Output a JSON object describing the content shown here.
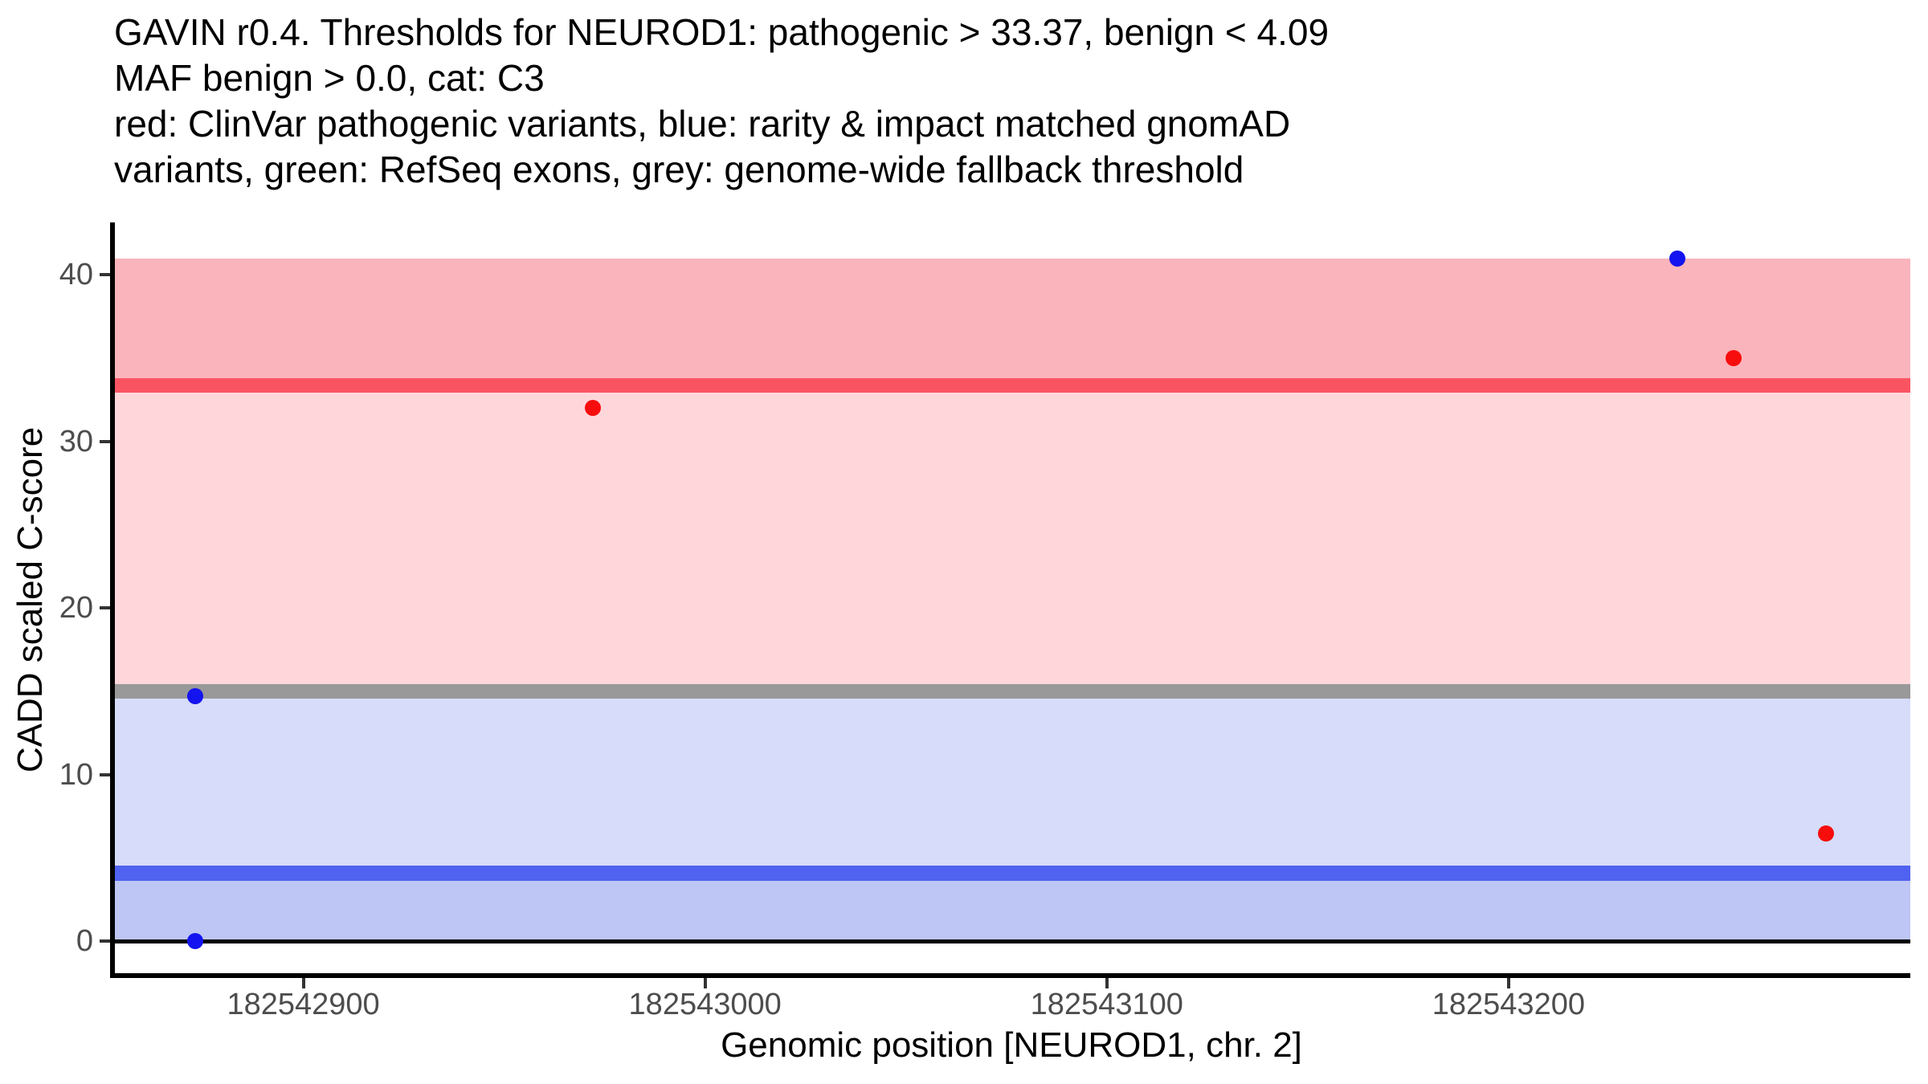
{
  "chart_data": {
    "type": "scatter",
    "title_lines": [
      "GAVIN r0.4. Thresholds for NEUROD1: pathogenic > 33.37, benign < 4.09",
      "MAF benign > 0.0, cat: C3",
      "red: ClinVar pathogenic variants, blue: rarity & impact matched gnomAD",
      "variants, green: RefSeq exons, grey: genome-wide fallback threshold"
    ],
    "xlabel": "Genomic position [NEUROD1, chr. 2]",
    "ylabel": "CADD scaled C-score",
    "xlim": [
      182542852.5,
      182543300.0
    ],
    "ylim": [
      -2.05,
      43.05
    ],
    "grid": false,
    "legend_position": "none",
    "x_ticks": [
      {
        "value": 182542900,
        "label": "182542900"
      },
      {
        "value": 182543000,
        "label": "182543000"
      },
      {
        "value": 182543100,
        "label": "182543100"
      },
      {
        "value": 182543200,
        "label": "182543200"
      }
    ],
    "y_ticks": [
      {
        "value": 0,
        "label": "0"
      },
      {
        "value": 10,
        "label": "10"
      },
      {
        "value": 20,
        "label": "20"
      },
      {
        "value": 30,
        "label": "30"
      },
      {
        "value": 40,
        "label": "40"
      }
    ],
    "thresholds": {
      "pathogenic": 33.37,
      "benign": 4.09,
      "genome_wide_fallback": 15
    },
    "bands": [
      {
        "name": "pathogenic-zone",
        "ymin": 33.37,
        "ymax": 41.0,
        "color": "#fab4bb"
      },
      {
        "name": "uncertain-upper-zone",
        "ymin": 15.0,
        "ymax": 33.37,
        "color": "#ffd7db"
      },
      {
        "name": "uncertain-lower-zone",
        "ymin": 4.09,
        "ymax": 15.0,
        "color": "#d6dcf9"
      },
      {
        "name": "benign-zone",
        "ymin": 0.0,
        "ymax": 4.09,
        "color": "#bdc6f4"
      }
    ],
    "hlines": [
      {
        "name": "pathogenic-threshold-line",
        "y": 33.37,
        "color": "#fa5463",
        "thickness_px": 18
      },
      {
        "name": "genome-wide-fallback-line",
        "y": 15.0,
        "color": "#999999",
        "thickness_px": 18
      },
      {
        "name": "benign-threshold-line",
        "y": 4.09,
        "color": "#4f62f0",
        "thickness_px": 19
      },
      {
        "name": "zero-line",
        "y": 0.0,
        "color": "#000000",
        "thickness_px": 5
      }
    ],
    "series": [
      {
        "name": "ClinVar pathogenic variants",
        "color": "#f80d0d",
        "points": [
          {
            "x": 182542972,
            "y": 32.0
          },
          {
            "x": 182543256,
            "y": 35.0
          },
          {
            "x": 182543279,
            "y": 6.5
          }
        ]
      },
      {
        "name": "rarity & impact matched gnomAD variants",
        "color": "#1414f0",
        "points": [
          {
            "x": 182542873,
            "y": 14.7
          },
          {
            "x": 182542873,
            "y": 0.0
          },
          {
            "x": 182543242,
            "y": 41.0
          }
        ]
      }
    ],
    "point_radius_px": 10
  }
}
